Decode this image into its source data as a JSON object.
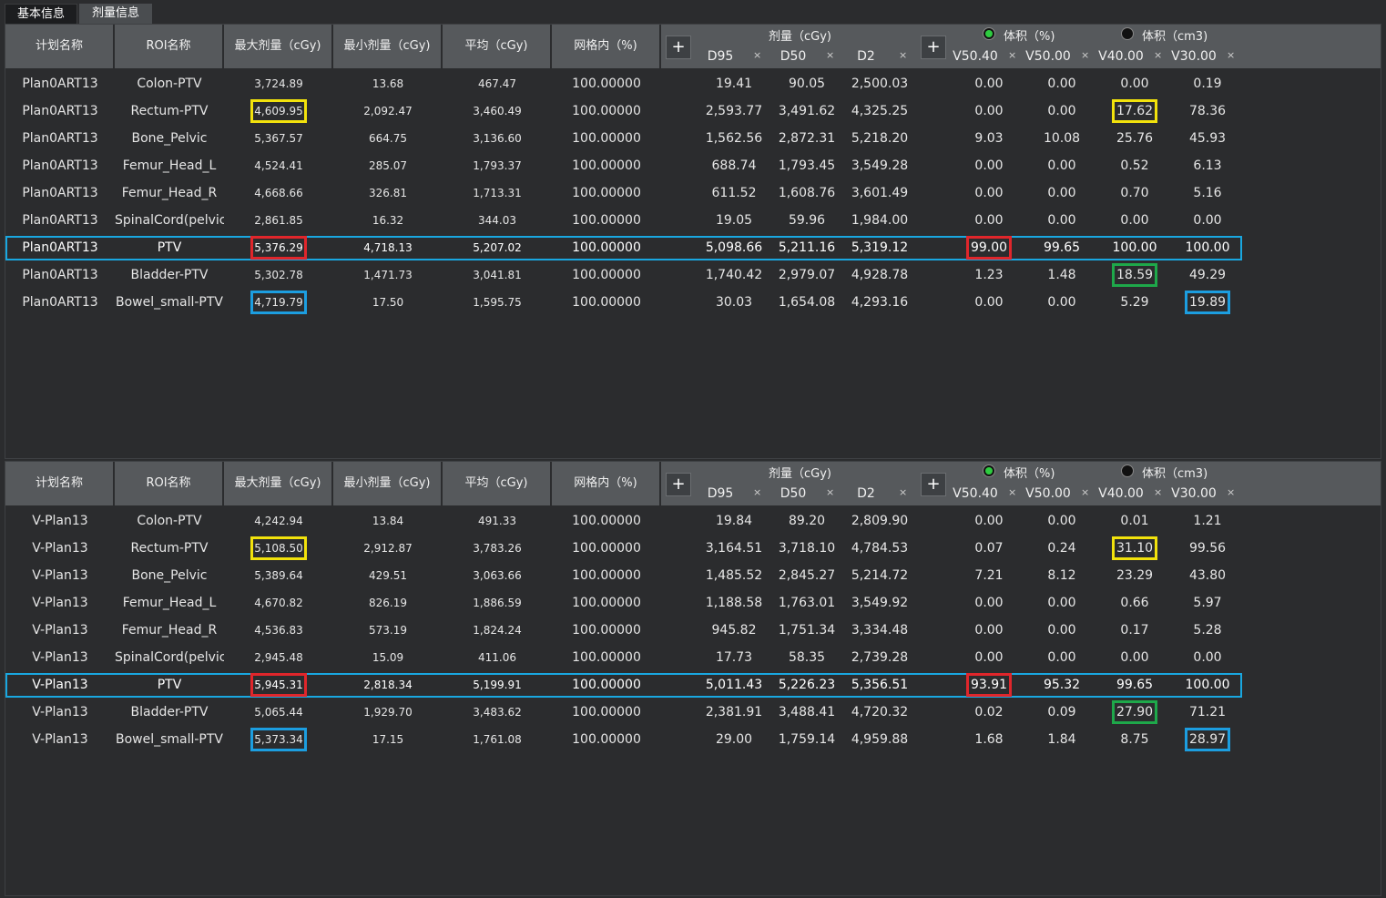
{
  "tabs": [
    "基本信息",
    "剂量信息"
  ],
  "columns": [
    "计划名称",
    "ROI名称",
    "最大剂量（cGy)",
    "最小剂量（cGy)",
    "平均（cGy)",
    "网格内（%)"
  ],
  "dose_group": "剂量（cGy)",
  "dose_subcols": [
    "D95",
    "D50",
    "D2"
  ],
  "vol_pct_group": "体积（%)",
  "vol_cm3_group": "体积（cm3)",
  "vol_subcols": [
    "V50.40",
    "V50.00",
    "V40.00",
    "V30.00"
  ],
  "plus_label": "+",
  "remove_label": "×",
  "tables": [
    {
      "rows": [
        [
          "Plan0ART13",
          "Colon-PTV",
          "3,724.89",
          "13.68",
          "467.47",
          "100.00000",
          "19.41",
          "90.05",
          "2,500.03",
          "0.00",
          "0.00",
          "0.00",
          "0.19"
        ],
        [
          "Plan0ART13",
          "Rectum-PTV",
          "4,609.95",
          "2,092.47",
          "3,460.49",
          "100.00000",
          "2,593.77",
          "3,491.62",
          "4,325.25",
          "0.00",
          "0.00",
          "17.62",
          "78.36"
        ],
        [
          "Plan0ART13",
          "Bone_Pelvic",
          "5,367.57",
          "664.75",
          "3,136.60",
          "100.00000",
          "1,562.56",
          "2,872.31",
          "5,218.20",
          "9.03",
          "10.08",
          "25.76",
          "45.93"
        ],
        [
          "Plan0ART13",
          "Femur_Head_L",
          "4,524.41",
          "285.07",
          "1,793.37",
          "100.00000",
          "688.74",
          "1,793.45",
          "3,549.28",
          "0.00",
          "0.00",
          "0.52",
          "6.13"
        ],
        [
          "Plan0ART13",
          "Femur_Head_R",
          "4,668.66",
          "326.81",
          "1,713.31",
          "100.00000",
          "611.52",
          "1,608.76",
          "3,601.49",
          "0.00",
          "0.00",
          "0.70",
          "5.16"
        ],
        [
          "Plan0ART13",
          "SpinalCord(pelvic",
          "2,861.85",
          "16.32",
          "344.03",
          "100.00000",
          "19.05",
          "59.96",
          "1,984.00",
          "0.00",
          "0.00",
          "0.00",
          "0.00"
        ],
        [
          "Plan0ART13",
          "PTV",
          "5,376.29",
          "4,718.13",
          "5,207.02",
          "100.00000",
          "5,098.66",
          "5,211.16",
          "5,319.12",
          "99.00",
          "99.65",
          "100.00",
          "100.00"
        ],
        [
          "Plan0ART13",
          "Bladder-PTV",
          "5,302.78",
          "1,471.73",
          "3,041.81",
          "100.00000",
          "1,740.42",
          "2,979.07",
          "4,928.78",
          "1.23",
          "1.48",
          "18.59",
          "49.29"
        ],
        [
          "Plan0ART13",
          "Bowel_small-PTV",
          "4,719.79",
          "17.50",
          "1,595.75",
          "100.00000",
          "30.03",
          "1,654.08",
          "4,293.16",
          "0.00",
          "0.00",
          "5.29",
          "19.89"
        ]
      ]
    },
    {
      "rows": [
        [
          "V-Plan13",
          "Colon-PTV",
          "4,242.94",
          "13.84",
          "491.33",
          "100.00000",
          "19.84",
          "89.20",
          "2,809.90",
          "0.00",
          "0.00",
          "0.01",
          "1.21"
        ],
        [
          "V-Plan13",
          "Rectum-PTV",
          "5,108.50",
          "2,912.87",
          "3,783.26",
          "100.00000",
          "3,164.51",
          "3,718.10",
          "4,784.53",
          "0.07",
          "0.24",
          "31.10",
          "99.56"
        ],
        [
          "V-Plan13",
          "Bone_Pelvic",
          "5,389.64",
          "429.51",
          "3,063.66",
          "100.00000",
          "1,485.52",
          "2,845.27",
          "5,214.72",
          "7.21",
          "8.12",
          "23.29",
          "43.80"
        ],
        [
          "V-Plan13",
          "Femur_Head_L",
          "4,670.82",
          "826.19",
          "1,886.59",
          "100.00000",
          "1,188.58",
          "1,763.01",
          "3,549.92",
          "0.00",
          "0.00",
          "0.66",
          "5.97"
        ],
        [
          "V-Plan13",
          "Femur_Head_R",
          "4,536.83",
          "573.19",
          "1,824.24",
          "100.00000",
          "945.82",
          "1,751.34",
          "3,334.48",
          "0.00",
          "0.00",
          "0.17",
          "5.28"
        ],
        [
          "V-Plan13",
          "SpinalCord(pelvic",
          "2,945.48",
          "15.09",
          "411.06",
          "100.00000",
          "17.73",
          "58.35",
          "2,739.28",
          "0.00",
          "0.00",
          "0.00",
          "0.00"
        ],
        [
          "V-Plan13",
          "PTV",
          "5,945.31",
          "2,818.34",
          "5,199.91",
          "100.00000",
          "5,011.43",
          "5,226.23",
          "5,356.51",
          "93.91",
          "95.32",
          "99.65",
          "100.00"
        ],
        [
          "V-Plan13",
          "Bladder-PTV",
          "5,065.44",
          "1,929.70",
          "3,483.62",
          "100.00000",
          "2,381.91",
          "3,488.41",
          "4,720.32",
          "0.02",
          "0.09",
          "27.90",
          "71.21"
        ],
        [
          "V-Plan13",
          "Bowel_small-PTV",
          "5,373.34",
          "17.15",
          "1,761.08",
          "100.00000",
          "29.00",
          "1,759.14",
          "4,959.88",
          "1.68",
          "1.84",
          "8.75",
          "28.97"
        ]
      ]
    }
  ],
  "selected_row": 6,
  "highlights": [
    {
      "row": 1,
      "col": 2,
      "color": "yellow"
    },
    {
      "row": 1,
      "col": 11,
      "color": "yellow"
    },
    {
      "row": 6,
      "col": 2,
      "color": "red"
    },
    {
      "row": 6,
      "col": 9,
      "color": "red"
    },
    {
      "row": 7,
      "col": 11,
      "color": "green"
    },
    {
      "row": 8,
      "col": 2,
      "color": "blue"
    },
    {
      "row": 8,
      "col": 12,
      "color": "blue"
    }
  ],
  "colors": {
    "selected_border": "#19a7e0",
    "yellow": "#f2e20c",
    "red": "#e0262b",
    "blue": "#1c9ee0",
    "green": "#1ea84a"
  }
}
